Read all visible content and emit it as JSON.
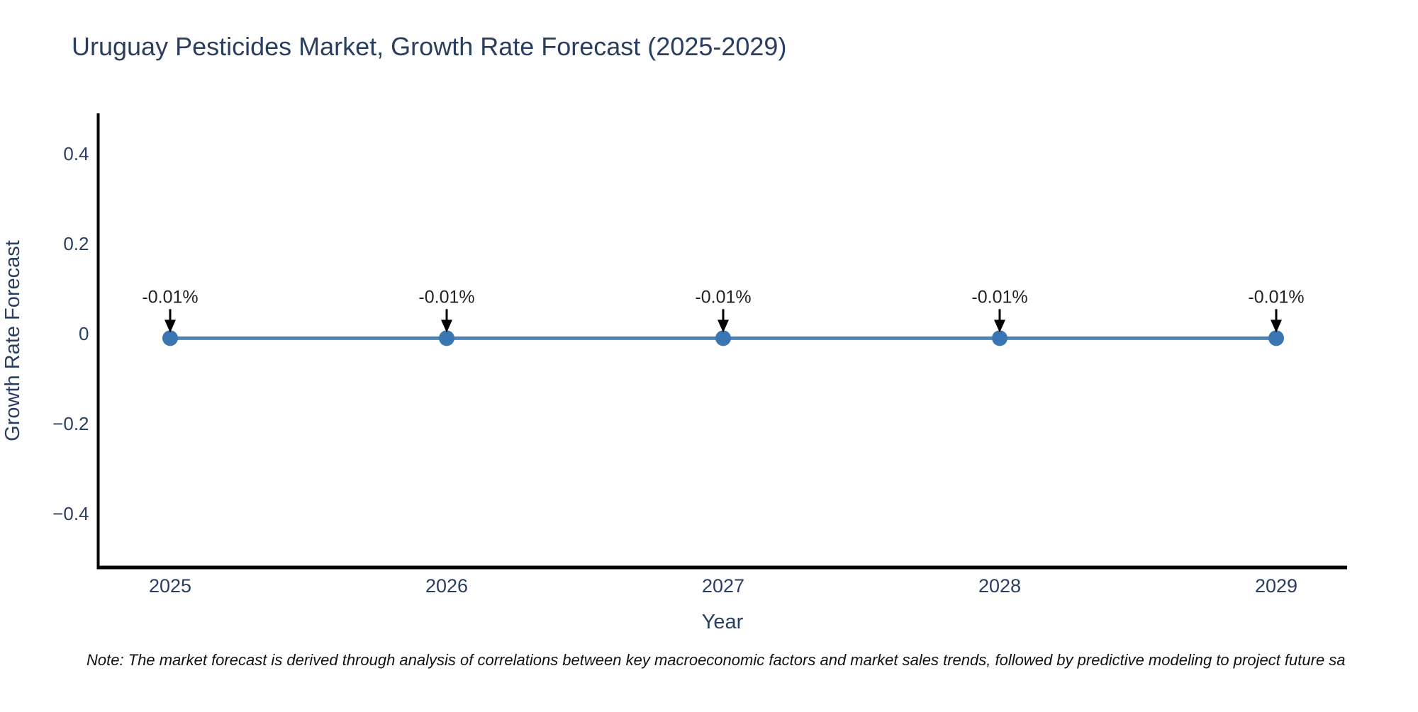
{
  "title": "Uruguay Pesticides Market, Growth Rate Forecast (2025-2029)",
  "note": "Note: The market forecast is derived through analysis of correlations between key macroeconomic factors and market sales trends, followed by predictive modeling to project future sa",
  "chart_data": {
    "type": "line",
    "title": "Uruguay Pesticides Market, Growth Rate Forecast (2025-2029)",
    "xlabel": "Year",
    "ylabel": "Growth Rate Forecast",
    "categories": [
      "2025",
      "2026",
      "2027",
      "2028",
      "2029"
    ],
    "series": [
      {
        "name": "Growth Rate Forecast",
        "values": [
          -0.01,
          -0.01,
          -0.01,
          -0.01,
          -0.01
        ],
        "point_labels": [
          "-0.01%",
          "-0.01%",
          "-0.01%",
          "-0.01%",
          "-0.01%"
        ]
      }
    ],
    "ylim": [
      -0.52,
      0.49
    ],
    "yticks": {
      "values": [
        0.4,
        0.2,
        0,
        -0.2,
        -0.4
      ],
      "labels": [
        "0.4",
        "0.2",
        "0",
        "−0.2",
        "−0.4"
      ]
    },
    "grid": false,
    "legend": "none",
    "annotation_style": "black-arrow-down-to-point",
    "colors": {
      "line": "#4c84b5",
      "marker": "#3a76b2",
      "axis_line": "#000000",
      "text": "#2a3f5f",
      "annotation_text": "#222222",
      "annotation_arrow": "#000000",
      "background": "#ffffff"
    }
  }
}
